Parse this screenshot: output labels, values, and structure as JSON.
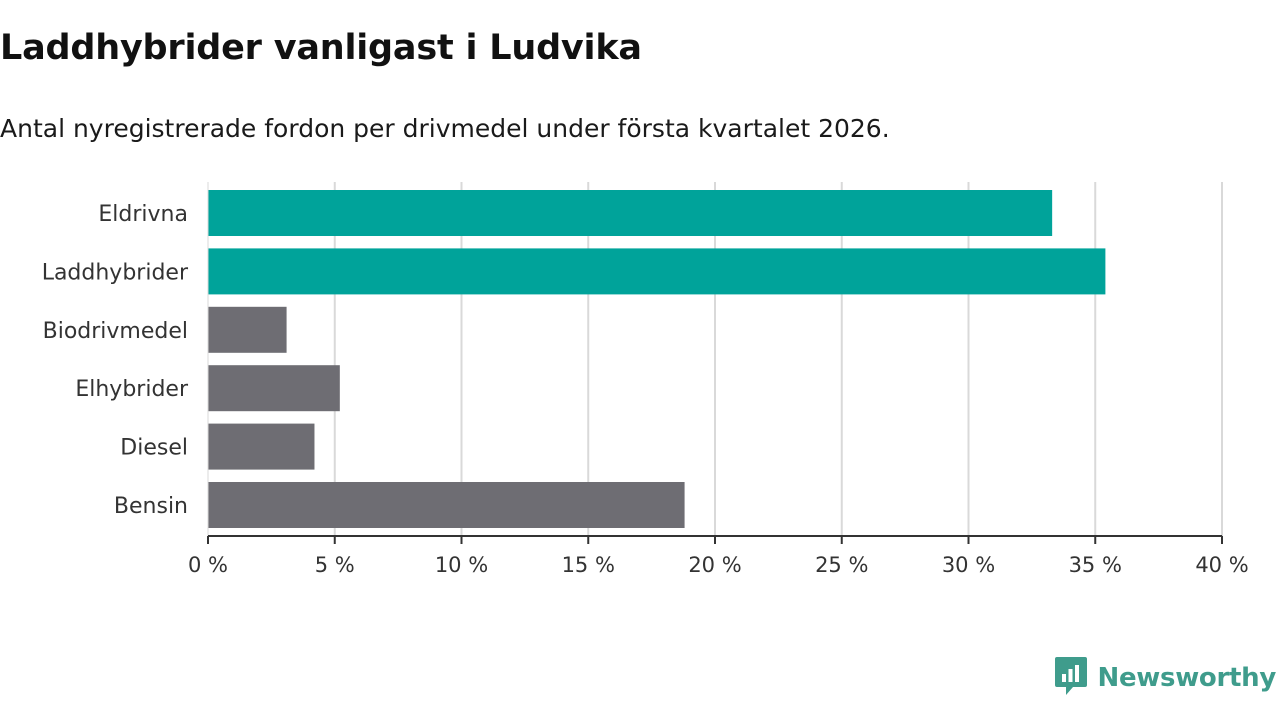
{
  "title": "Laddhybrider vanligast i Ludvika",
  "subtitle": "Antal nyregistrerade fordon per drivmedel under första kvartalet 2026.",
  "brand": {
    "name": "Newsworthy",
    "color": "#3f9c8c",
    "icon": "newsworthy-logo-icon"
  },
  "colors": {
    "highlight": "#00a39a",
    "default": "#6e6d73",
    "grid": "#d9d9d9",
    "axis": "#333333"
  },
  "chart_data": {
    "type": "bar",
    "orientation": "horizontal",
    "title": "Laddhybrider vanligast i Ludvika",
    "subtitle": "Antal nyregistrerade fordon per drivmedel under första kvartalet 2026.",
    "categories": [
      "Eldrivna",
      "Laddhybrider",
      "Biodrivmedel",
      "Elhybrider",
      "Diesel",
      "Bensin"
    ],
    "values": [
      33.3,
      35.4,
      3.1,
      5.2,
      4.2,
      18.8
    ],
    "highlighted": [
      true,
      true,
      false,
      false,
      false,
      false
    ],
    "xlabel": "",
    "ylabel": "",
    "xlim": [
      0,
      40
    ],
    "xticks": [
      0,
      5,
      10,
      15,
      20,
      25,
      30,
      35,
      40
    ],
    "xtick_labels": [
      "0 %",
      "5 %",
      "10 %",
      "15 %",
      "20 %",
      "25 %",
      "30 %",
      "35 %",
      "40 %"
    ],
    "grid": true,
    "unit": "%"
  }
}
